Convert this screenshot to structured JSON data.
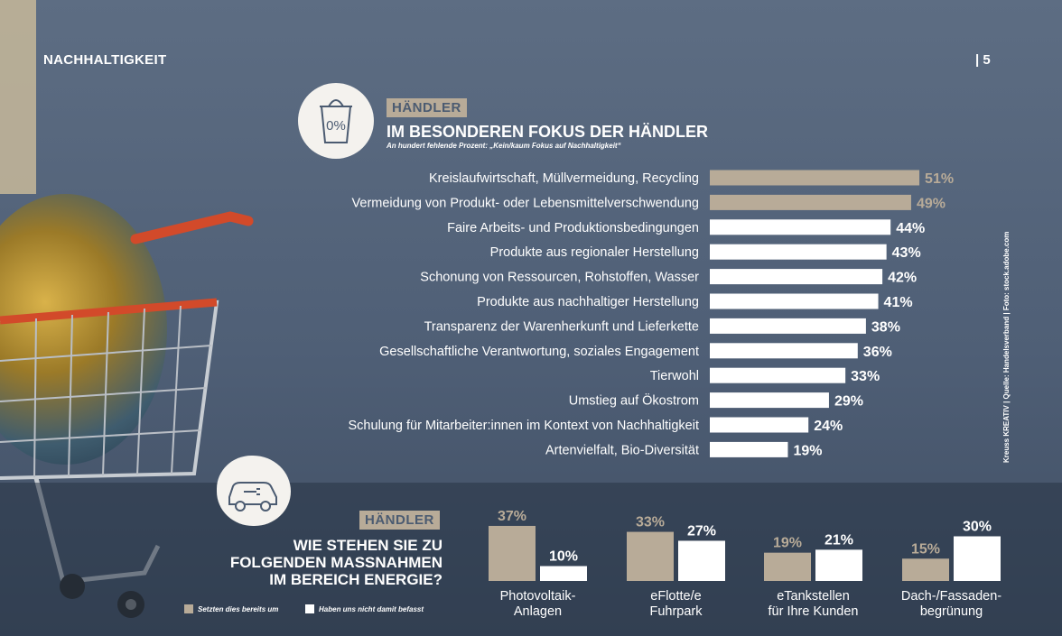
{
  "header": {
    "section": "NACHHALTIGKEIT",
    "page": "| 5"
  },
  "chart1": {
    "tag": "HÄNDLER",
    "title": "IM BESONDEREN FOKUS DER HÄNDLER",
    "subtitle": "An hundert fehlende Prozent: „Kein/kaum Fokus auf Nachhaltigkeit“",
    "icon_text": "0%"
  },
  "chart2": {
    "tag": "HÄNDLER",
    "title_lines": [
      "WIE STEHEN SIE ZU",
      "FOLGENDEN MASSNAHMEN",
      "IM BEREICH ENERGIE?"
    ]
  },
  "credit": "Kreuss KREATIV | Quelle: Handelsverband | Foto: stock.adobe.com",
  "colors": {
    "accent": "#b8ab98",
    "white": "#ffffff",
    "bg": "#55657b"
  },
  "chart_data": [
    {
      "type": "bar",
      "orientation": "horizontal",
      "categories": [
        "Kreislaufwirtschaft, Müllvermeidung, Recycling",
        "Vermeidung von Produkt- oder Lebensmittelverschwendung",
        "Faire Arbeits- und Produktionsbedingungen",
        "Produkte aus regionaler Herstellung",
        "Schonung von Ressourcen, Rohstoffen, Wasser",
        "Produkte aus nachhaltiger Herstellung",
        "Transparenz der Warenherkunft und Lieferkette",
        "Gesellschaftliche Verantwortung, soziales Engagement",
        "Tierwohl",
        "Umstieg auf Ökostrom",
        "Schulung für Mitarbeiter:innen im Kontext von Nachhaltigkeit",
        "Artenvielfalt, Bio-Diversität"
      ],
      "values": [
        51,
        49,
        44,
        43,
        42,
        41,
        38,
        36,
        33,
        29,
        24,
        19
      ],
      "labels": [
        "51%",
        "49%",
        "44%",
        "43%",
        "42%",
        "41%",
        "38%",
        "36%",
        "33%",
        "29%",
        "24%",
        "19%"
      ],
      "highlight": [
        true,
        true,
        false,
        false,
        false,
        false,
        false,
        false,
        false,
        false,
        false,
        false
      ]
    },
    {
      "type": "bar",
      "categories": [
        [
          "Photovoltaik-",
          "Anlagen"
        ],
        [
          "eFlotte/e",
          "Fuhrpark"
        ],
        [
          "eTankstellen",
          "für Ihre Kunden"
        ],
        [
          "Dach-/Fassaden-",
          "begrünung"
        ]
      ],
      "series": [
        {
          "name": "Setzten dies bereits um",
          "values": [
            37,
            33,
            19,
            15
          ],
          "labels": [
            "37%",
            "33%",
            "19%",
            "15%"
          ],
          "color": "#b8ab98"
        },
        {
          "name": "Haben uns nicht damit befasst",
          "values": [
            10,
            27,
            21,
            30
          ],
          "labels": [
            "10%",
            "27%",
            "21%",
            "30%"
          ],
          "color": "#ffffff"
        }
      ]
    }
  ]
}
